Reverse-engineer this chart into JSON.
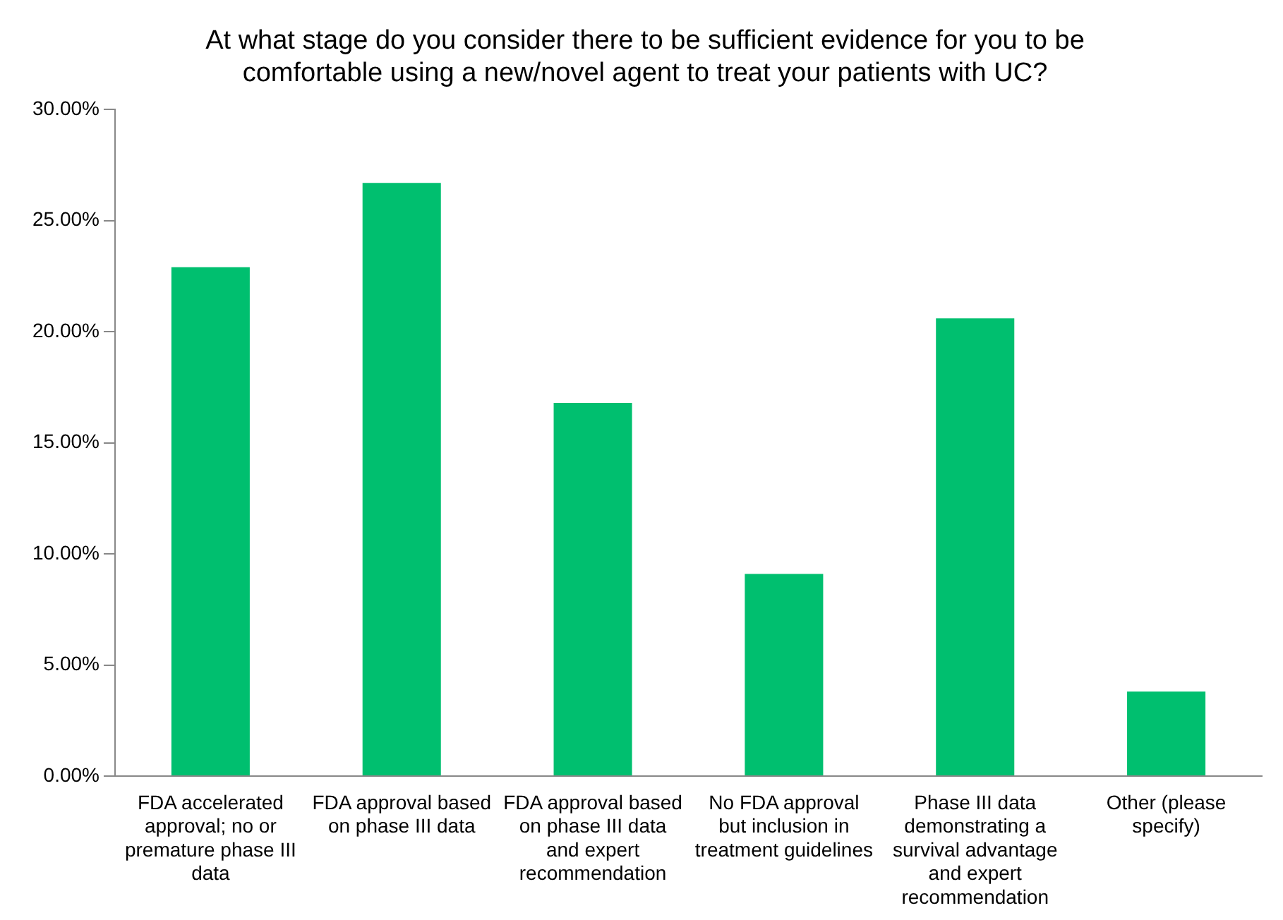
{
  "chart_data": {
    "type": "bar",
    "title": [
      "At what stage do you consider there to be sufficient evidence for you to be",
      "comfortable using a new/novel agent to treat your patients with UC?"
    ],
    "categories": [
      "FDA accelerated approval; no or premature phase III data",
      "FDA approval based on phase III data",
      "FDA approval based on phase III data and expert recommendation",
      "No FDA approval but inclusion in treatment guidelines",
      "Phase III data demonstrating a survival advantage and expert recommendation",
      "Other (please specify)"
    ],
    "values": [
      22.9,
      26.7,
      16.8,
      9.1,
      20.6,
      3.8
    ],
    "color": "#00bf6f",
    "ylim": [
      0,
      30
    ],
    "yticks": [
      {
        "value": 0,
        "label": "0.00%"
      },
      {
        "value": 5,
        "label": "5.00%"
      },
      {
        "value": 10,
        "label": "10.00%"
      },
      {
        "value": 15,
        "label": "15.00%"
      },
      {
        "value": 20,
        "label": "20.00%"
      },
      {
        "value": 25,
        "label": "25.00%"
      },
      {
        "value": 30,
        "label": "30.00%"
      }
    ],
    "grid": false,
    "legend": false
  }
}
